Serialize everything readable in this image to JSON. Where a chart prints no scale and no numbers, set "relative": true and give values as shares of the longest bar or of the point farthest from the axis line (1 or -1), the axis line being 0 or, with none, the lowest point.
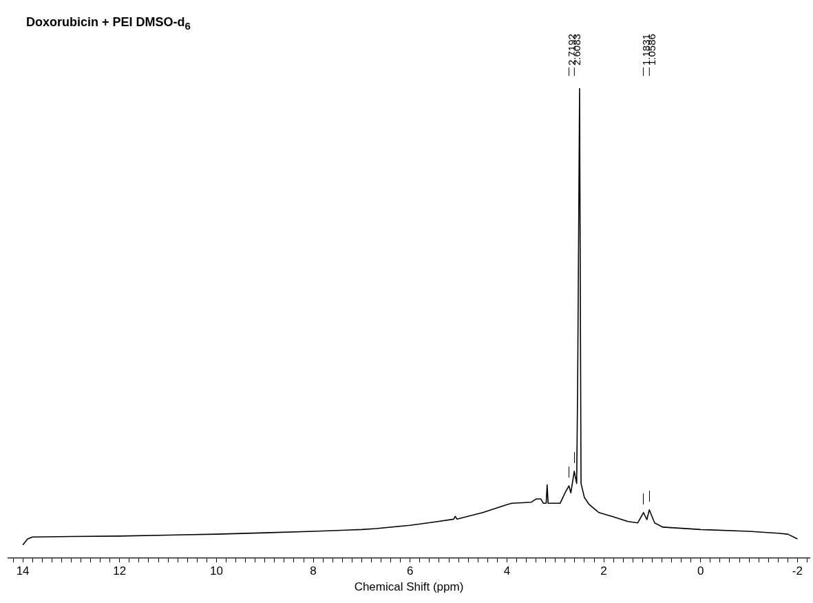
{
  "chart_data": {
    "type": "line",
    "title": "Doxorubicin + PEI DMSO-d$_{6}$",
    "xlabel": "Chemical Shift (ppm)",
    "relative": true,
    "grid": false,
    "legend": false,
    "marker": "none",
    "line_style": "solid",
    "xlim": [
      14.3,
      -2.25
    ],
    "xticks": [
      {
        "value": 14.2,
        "label": null
      },
      14,
      {
        "value": 13.8,
        "label": null
      },
      {
        "value": 13.6,
        "label": null
      },
      {
        "value": 13.4,
        "label": null
      },
      {
        "value": 13.2,
        "label": null
      },
      {
        "value": 13,
        "label": null
      },
      {
        "value": 12.8,
        "label": null
      },
      {
        "value": 12.6,
        "label": null
      },
      {
        "value": 12.4,
        "label": null
      },
      {
        "value": 12.2,
        "label": null
      },
      12,
      {
        "value": 11.8,
        "label": null
      },
      {
        "value": 11.6,
        "label": null
      },
      {
        "value": 11.4,
        "label": null
      },
      {
        "value": 11.2,
        "label": null
      },
      {
        "value": 11,
        "label": null
      },
      {
        "value": 10.8,
        "label": null
      },
      {
        "value": 10.6,
        "label": null
      },
      {
        "value": 10.4,
        "label": null
      },
      {
        "value": 10.2,
        "label": null
      },
      10,
      {
        "value": 9.8,
        "label": null
      },
      {
        "value": 9.6,
        "label": null
      },
      {
        "value": 9.4,
        "label": null
      },
      {
        "value": 9.2,
        "label": null
      },
      {
        "value": 9,
        "label": null
      },
      {
        "value": 8.8,
        "label": null
      },
      {
        "value": 8.6,
        "label": null
      },
      {
        "value": 8.4,
        "label": null
      },
      {
        "value": 8.2,
        "label": null
      },
      8,
      {
        "value": 7.8,
        "label": null
      },
      {
        "value": 7.6,
        "label": null
      },
      {
        "value": 7.4,
        "label": null
      },
      {
        "value": 7.2,
        "label": null
      },
      {
        "value": 7,
        "label": null
      },
      {
        "value": 6.8,
        "label": null
      },
      {
        "value": 6.6,
        "label": null
      },
      {
        "value": 6.4,
        "label": null
      },
      {
        "value": 6.2,
        "label": null
      },
      6,
      {
        "value": 5.8,
        "label": null
      },
      {
        "value": 5.6,
        "label": null
      },
      {
        "value": 5.4,
        "label": null
      },
      {
        "value": 5.2,
        "label": null
      },
      {
        "value": 5,
        "label": null
      },
      {
        "value": 4.8,
        "label": null
      },
      {
        "value": 4.6,
        "label": null
      },
      {
        "value": 4.4,
        "label": null
      },
      {
        "value": 4.2,
        "label": null
      },
      4,
      {
        "value": 3.8,
        "label": null
      },
      {
        "value": 3.6,
        "label": null
      },
      {
        "value": 3.4,
        "label": null
      },
      {
        "value": 3.2,
        "label": null
      },
      {
        "value": 3,
        "label": null
      },
      {
        "value": 2.8,
        "label": null
      },
      {
        "value": 2.6,
        "label": null
      },
      {
        "value": 2.4,
        "label": null
      },
      {
        "value": 2.2,
        "label": null
      },
      2,
      {
        "value": 1.8,
        "label": null
      },
      {
        "value": 1.6,
        "label": null
      },
      {
        "value": 1.4,
        "label": null
      },
      {
        "value": 1.2,
        "label": null
      },
      {
        "value": 1,
        "label": null
      },
      {
        "value": 0.8,
        "label": null
      },
      {
        "value": 0.6,
        "label": null
      },
      {
        "value": 0.4,
        "label": null
      },
      {
        "value": 0.2,
        "label": null
      },
      0,
      {
        "value": -0.2,
        "label": null
      },
      {
        "value": -0.4,
        "label": null
      },
      {
        "value": -0.6,
        "label": null
      },
      {
        "value": -0.8,
        "label": null
      },
      {
        "value": -1,
        "label": null
      },
      {
        "value": -1.2,
        "label": null
      },
      {
        "value": -1.4,
        "label": null
      },
      {
        "value": -1.6,
        "label": null
      },
      {
        "value": -1.8,
        "label": null
      },
      -2,
      {
        "value": -2.2,
        "label": null
      }
    ],
    "x": [
      14.0,
      13.9,
      13.8,
      13,
      12,
      11,
      10,
      9,
      8,
      7,
      6.7,
      6,
      5.5,
      5.1,
      5.07,
      5.03,
      4.5,
      4.0,
      3.9,
      3.5,
      3.4,
      3.3,
      3.25,
      3.19,
      3.17,
      3.15,
      2.9,
      2.8,
      2.72,
      2.68,
      2.61,
      2.56,
      2.54,
      2.5,
      2.47,
      2.4,
      2.3,
      2.1,
      1.8,
      1.5,
      1.3,
      1.18,
      1.11,
      1.06,
      0.95,
      0.78,
      0,
      -1,
      -1.6,
      -1.8,
      -2.0
    ],
    "series": [
      {
        "color": "#000000",
        "values": [
          0.027,
          0.04,
          0.044,
          0.045,
          0.046,
          0.048,
          0.05,
          0.053,
          0.056,
          0.06,
          0.062,
          0.069,
          0.076,
          0.082,
          0.088,
          0.082,
          0.096,
          0.113,
          0.116,
          0.118,
          0.125,
          0.125,
          0.116,
          0.116,
          0.155,
          0.116,
          0.116,
          0.138,
          0.153,
          0.138,
          0.184,
          0.158,
          0.364,
          1.0,
          0.158,
          0.128,
          0.113,
          0.096,
          0.087,
          0.077,
          0.074,
          0.096,
          0.081,
          0.102,
          0.074,
          0.065,
          0.06,
          0.056,
          0.052,
          0.05,
          0.04
        ]
      }
    ],
    "annotations": [
      {
        "text": "2.7192",
        "x": 2.7192
      },
      {
        "text": "2.6083",
        "x": 2.6083
      },
      {
        "text": "1.1831",
        "x": 1.1831
      },
      {
        "text": "1.0586",
        "x": 1.0586
      }
    ]
  }
}
